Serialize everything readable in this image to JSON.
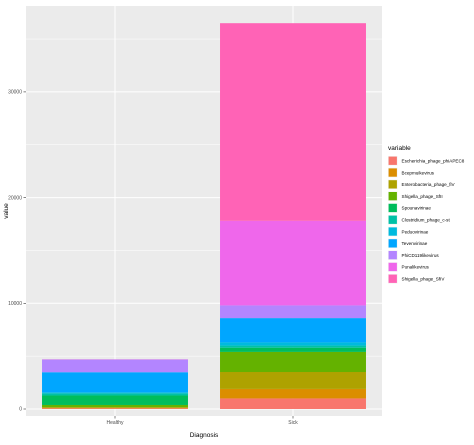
{
  "chart_data": {
    "type": "bar",
    "stacked": true,
    "title": "",
    "xlabel": "Diagnosis",
    "ylabel": "value",
    "categories": [
      "Healthy",
      "Sick"
    ],
    "ylim": [
      0,
      37000
    ],
    "yticks": [
      0,
      10000,
      20000,
      30000
    ],
    "grid": true,
    "legend": {
      "title": "variable",
      "position": "right"
    },
    "series": [
      {
        "name": "Escherichia_phage_phiAPEC8",
        "color": "#F8766D",
        "values": [
          60,
          1000
        ]
      },
      {
        "name": "Bcepmuikevirus",
        "color": "#DB8E00",
        "values": [
          40,
          900
        ]
      },
      {
        "name": "Enterobacteria_phage_fiV",
        "color": "#AEA200",
        "values": [
          80,
          1600
        ]
      },
      {
        "name": "Shigella_phage_SfII",
        "color": "#64B200",
        "values": [
          200,
          1900
        ]
      },
      {
        "name": "Spounavirinae",
        "color": "#00BD5C",
        "values": [
          900,
          400
        ]
      },
      {
        "name": "Clostridium_phage_c-st",
        "color": "#00C1A7",
        "values": [
          200,
          200
        ]
      },
      {
        "name": "Peduovirinae",
        "color": "#00BADE",
        "values": [
          100,
          300
        ]
      },
      {
        "name": "Tevenvirinae",
        "color": "#00A6FF",
        "values": [
          1900,
          2300
        ]
      },
      {
        "name": "PhiCD119likevirus",
        "color": "#B385FF",
        "values": [
          1200,
          1200
        ]
      },
      {
        "name": "Punalikevirus",
        "color": "#EF67EB",
        "values": [
          10,
          8000
        ]
      },
      {
        "name": "Shigella_phage_SfIV",
        "color": "#FF63B6",
        "values": [
          10,
          18700
        ]
      }
    ]
  }
}
